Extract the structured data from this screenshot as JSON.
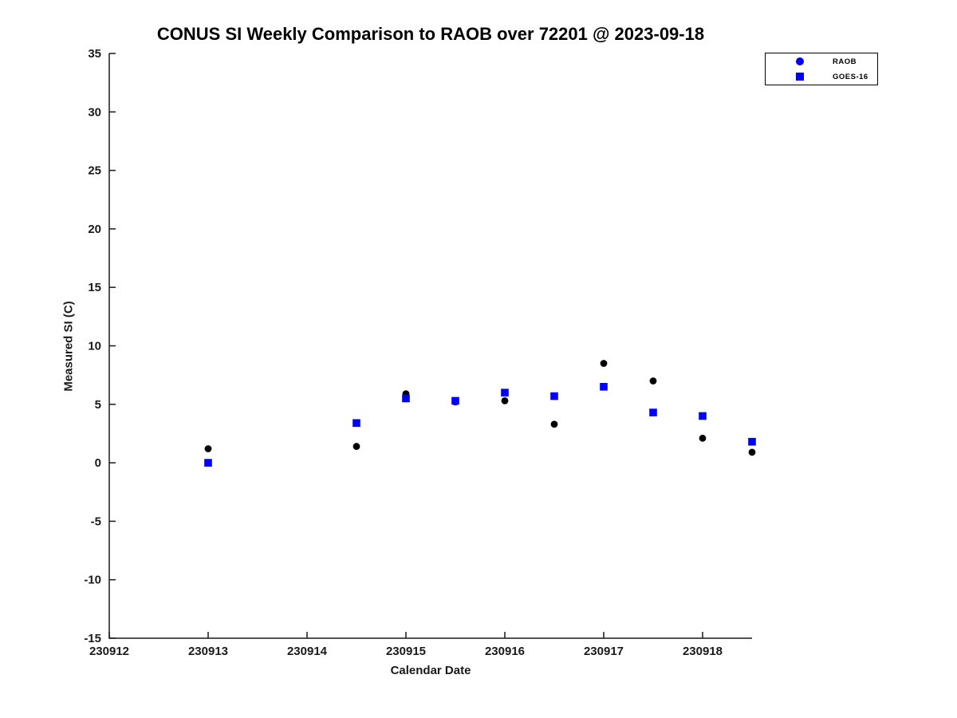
{
  "chart_data": {
    "type": "scatter",
    "title": "CONUS SI Weekly Comparison to RAOB over 72201 @ 2023-09-18",
    "xlabel": "Calendar Date",
    "ylabel": "Measured SI (C)",
    "xlim": [
      230912,
      230918.5
    ],
    "ylim": [
      -15,
      35
    ],
    "x_tick_values": [
      230912,
      230913,
      230914,
      230915,
      230916,
      230917,
      230918
    ],
    "x_tick_labels": [
      "230912",
      "230913",
      "230914",
      "230915",
      "230916",
      "230917",
      "230918"
    ],
    "y_tick_values": [
      -15,
      -10,
      -5,
      0,
      5,
      10,
      15,
      20,
      25,
      30,
      35
    ],
    "grid": false,
    "legend_position": "top-right",
    "axis_color": "#1a1a1a",
    "series": [
      {
        "name": "RAOB",
        "marker": "circle",
        "plot_color": "#000000",
        "legend_marker_color": "#0000ff",
        "x": [
          230913,
          230914.5,
          230915,
          230915.5,
          230916,
          230916.5,
          230917,
          230917.5,
          230918,
          230918.5
        ],
        "y": [
          1.2,
          1.4,
          5.9,
          5.2,
          5.3,
          3.3,
          8.5,
          7.0,
          2.1,
          0.9
        ]
      },
      {
        "name": "GOES-16",
        "marker": "square",
        "plot_color": "#0000ff",
        "legend_marker_color": "#0000ff",
        "x": [
          230913,
          230914.5,
          230915,
          230915.5,
          230916,
          230916.5,
          230917,
          230917.5,
          230918,
          230918.5
        ],
        "y": [
          0.0,
          3.4,
          5.5,
          5.3,
          6.0,
          5.7,
          6.5,
          4.3,
          4.0,
          1.8
        ]
      }
    ]
  }
}
